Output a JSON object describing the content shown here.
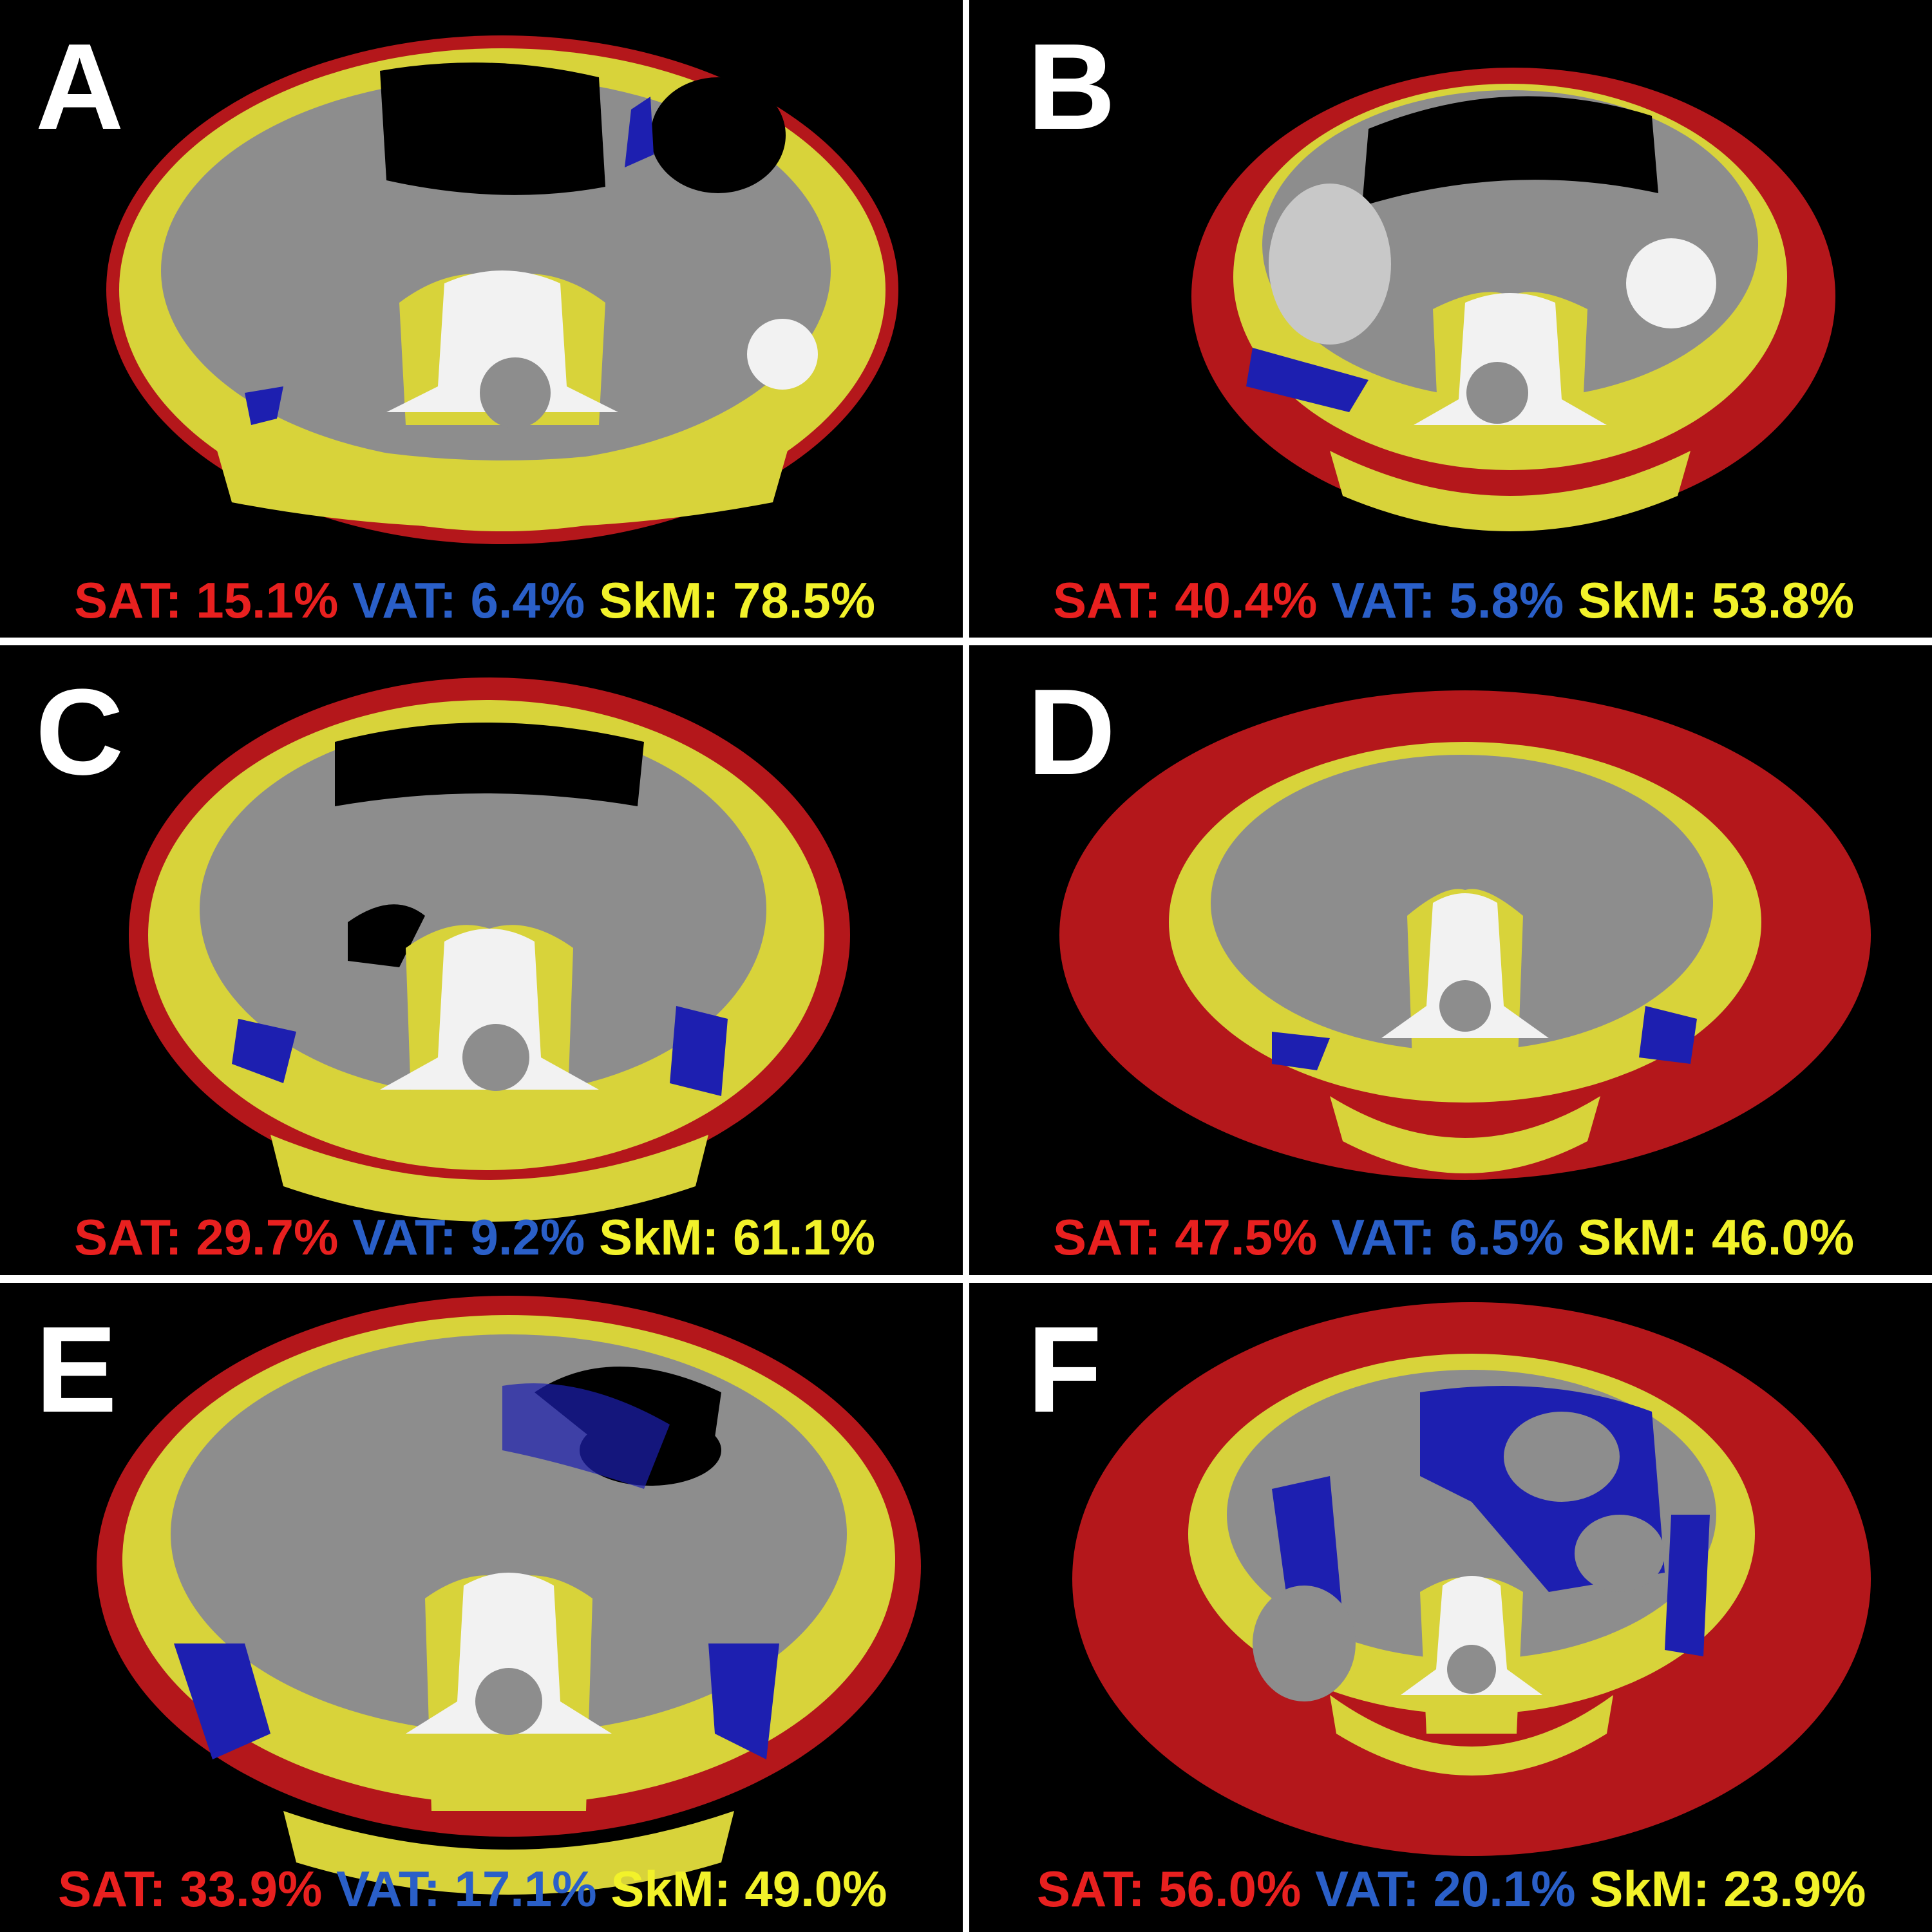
{
  "colors": {
    "sat": "#e8201f",
    "vat": "#2a5fc8",
    "skm": "#f2f22a",
    "sat_region": "#b4171b",
    "skm_region": "#d8d33a",
    "vat_region": "#1d1fb0",
    "tissue": "#8d8d8d",
    "bone": "#f2f2f2",
    "background": "#000000"
  },
  "panels": [
    {
      "letter": "A",
      "sat_label": "SAT:",
      "sat": "15.1%",
      "vat_label": "VAT:",
      "vat": "6.4%",
      "skm_label": "SkM:",
      "skm": "78.5%"
    },
    {
      "letter": "B",
      "sat_label": "SAT:",
      "sat": "40.4%",
      "vat_label": "VAT:",
      "vat": "5.8%",
      "skm_label": "SkM:",
      "skm": "53.8%"
    },
    {
      "letter": "C",
      "sat_label": "SAT:",
      "sat": "29.7%",
      "vat_label": "VAT:",
      "vat": "9.2%",
      "skm_label": "SkM:",
      "skm": "61.1%"
    },
    {
      "letter": "D",
      "sat_label": "SAT:",
      "sat": "47.5%",
      "vat_label": "VAT:",
      "vat": "6.5%",
      "skm_label": "SkM:",
      "skm": "46.0%"
    },
    {
      "letter": "E",
      "sat_label": "SAT:",
      "sat": "33.9%",
      "vat_label": "VAT:",
      "vat": "17.1%",
      "skm_label": "SkM:",
      "skm": "49.0%"
    },
    {
      "letter": "F",
      "sat_label": "SAT:",
      "sat": "56.0%",
      "vat_label": "VAT:",
      "vat": "20.1%",
      "skm_label": "SkM:",
      "skm": "23.9%"
    }
  ]
}
